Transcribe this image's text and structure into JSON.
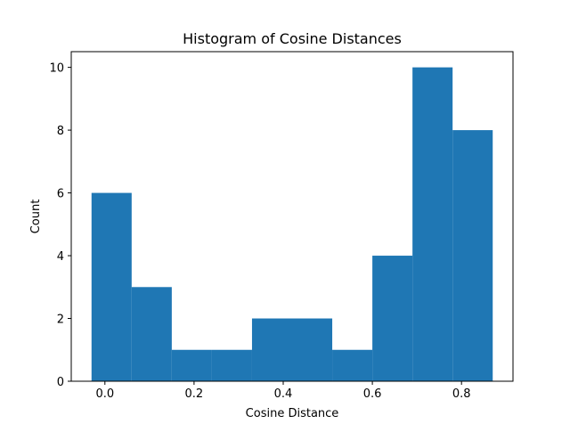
{
  "chart_data": {
    "type": "bar",
    "title": "Histogram of Cosine Distances",
    "xlabel": "Cosine Distance",
    "ylabel": "Count",
    "bin_edges": [
      -0.03,
      0.06,
      0.15,
      0.24,
      0.33,
      0.42,
      0.51,
      0.6,
      0.69,
      0.78,
      0.87
    ],
    "values": [
      6,
      3,
      1,
      1,
      2,
      2,
      1,
      4,
      10,
      8
    ],
    "xlim": [
      -0.0755,
      0.9155
    ],
    "ylim": [
      0,
      10.5
    ],
    "xticks": [
      0.0,
      0.2,
      0.4,
      0.6,
      0.8
    ],
    "xtick_labels": [
      "0.0",
      "0.2",
      "0.4",
      "0.6",
      "0.8"
    ],
    "yticks": [
      0,
      2,
      4,
      6,
      8,
      10
    ],
    "ytick_labels": [
      "0",
      "2",
      "4",
      "6",
      "8",
      "10"
    ],
    "bar_color": "#1f77b4",
    "grid": false,
    "legend": "none"
  }
}
